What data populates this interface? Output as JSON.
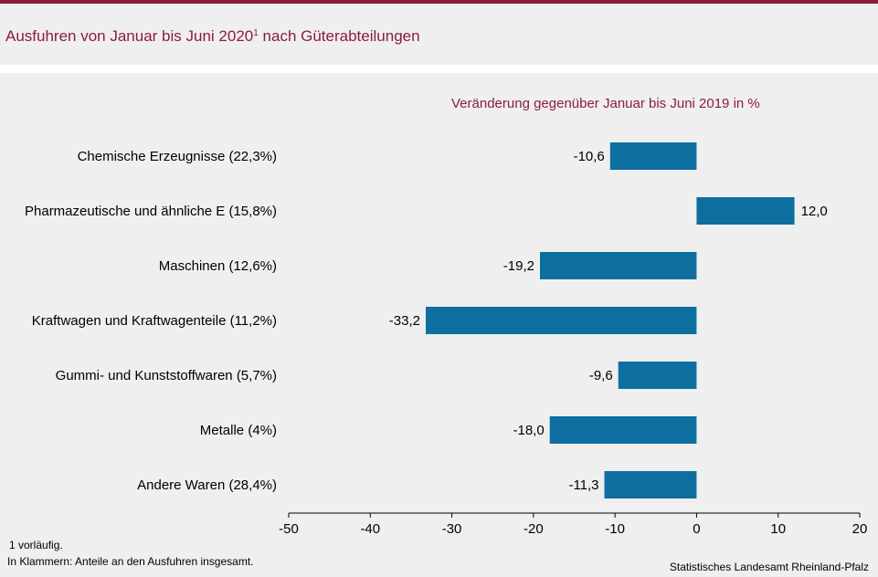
{
  "header": {
    "title": "Ausfuhren von Januar bis Juni 2020",
    "title_footnote_mark": "1",
    "title_suffix": " nach Güterabteilungen"
  },
  "colors": {
    "accent": "#8c1d3a",
    "bar": "#0d6fa0"
  },
  "chart_data": {
    "type": "bar",
    "orientation": "horizontal",
    "title": "Veränderung gegenüber Januar bis Juni 2019 in %",
    "categories": [
      "Chemische Erzeugnisse (22,3%)",
      "Pharmazeutische und ähnliche E (15,8%)",
      "Maschinen (12,6%)",
      "Kraftwagen und Kraftwagenteile (11,2%)",
      "Gummi- und Kunststoffwaren (5,7%)",
      "Metalle (4%)",
      "Andere Waren (28,4%)"
    ],
    "values": [
      -10.6,
      12.0,
      -19.2,
      -33.2,
      -9.6,
      -18.0,
      -11.3
    ],
    "value_labels": [
      "-10,6",
      "12,0",
      "-19,2",
      "-33,2",
      "-9,6",
      "-18,0",
      "-11,3"
    ],
    "xlim": [
      -50,
      20
    ],
    "xticks": [
      -50,
      -40,
      -30,
      -20,
      -10,
      0,
      10,
      20
    ],
    "grid": false
  },
  "footer": {
    "footnote": "1 vorläufig.",
    "note": "In Klammern: Anteile an den Ausfuhren insgesamt.",
    "source": "Statistisches Landesamt Rheinland-Pfalz"
  }
}
